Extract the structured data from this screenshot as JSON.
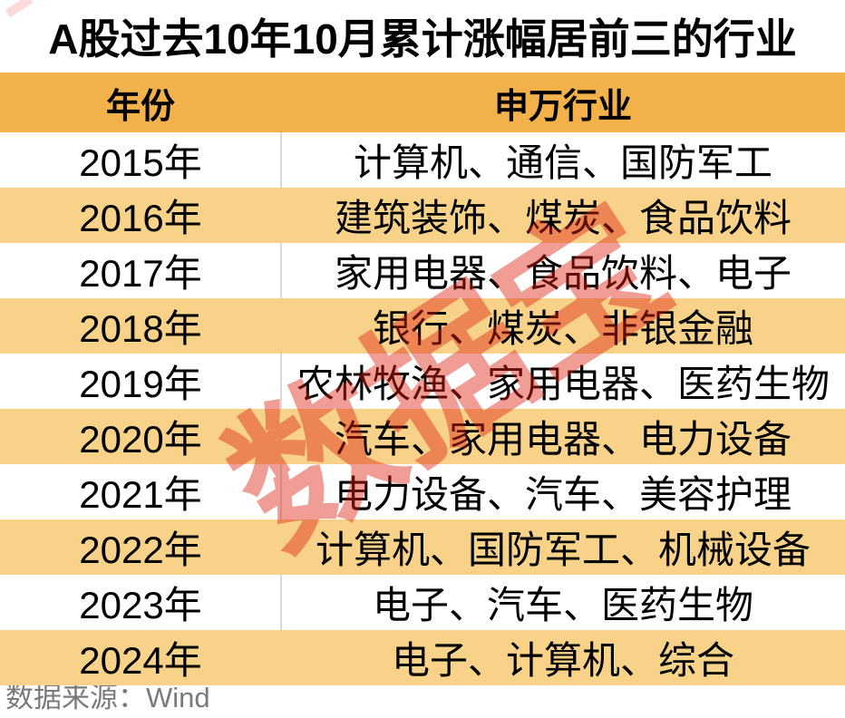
{
  "title": "A股过去10年10月累计涨幅居前三的行业",
  "chart_data": {
    "type": "table",
    "title": "A股过去10年10月累计涨幅居前三的行业",
    "columns": [
      "年份",
      "申万行业"
    ],
    "rows": [
      [
        "2015年",
        "计算机、通信、国防军工"
      ],
      [
        "2016年",
        "建筑装饰、煤炭、食品饮料"
      ],
      [
        "2017年",
        "家用电器、食品饮料、电子"
      ],
      [
        "2018年",
        "银行、煤炭、非银金融"
      ],
      [
        "2019年",
        "农林牧渔、家用电器、医药生物"
      ],
      [
        "2020年",
        "汽车、家用电器、电力设备"
      ],
      [
        "2021年",
        "电力设备、汽车、美容护理"
      ],
      [
        "2022年",
        "计算机、国防军工、机械设备"
      ],
      [
        "2023年",
        "电子、汽车、医药生物"
      ],
      [
        "2024年",
        "电子、计算机、综合"
      ]
    ],
    "layout_hints": {
      "header_bg": "#F2B14A",
      "alt_row_bg": "#F8D289",
      "row_bg": "#FFFFFF",
      "divider_color": "#D9D9D9",
      "text_color": "#000000"
    }
  },
  "footer": {
    "source_text": "数据来源：Wind",
    "color": "#7A7A7A"
  },
  "watermark": {
    "text": "数据宝",
    "color": "rgba(221,32,16,0.44)"
  }
}
